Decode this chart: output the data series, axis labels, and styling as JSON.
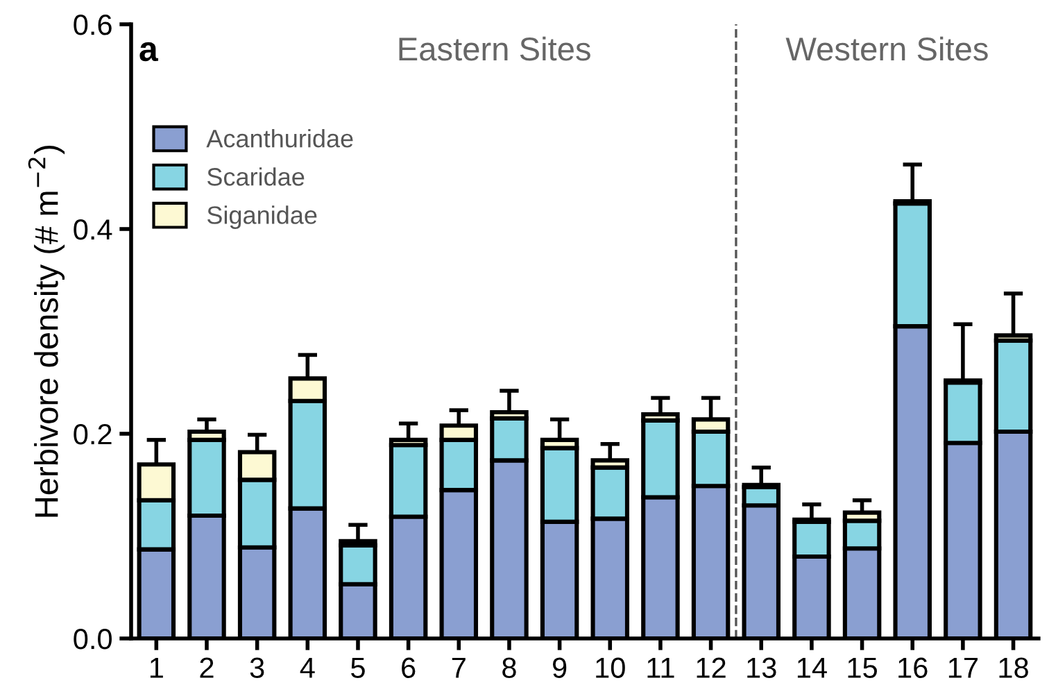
{
  "chart_data": {
    "type": "bar",
    "stacked": true,
    "ylabel": "Herbivore density (# m$^{−2}$)",
    "x": [
      1,
      2,
      3,
      4,
      5,
      6,
      7,
      8,
      9,
      10,
      11,
      12,
      13,
      14,
      15,
      16,
      17,
      18
    ],
    "xlim": [
      0.5,
      18.5
    ],
    "xticks": [
      1,
      2,
      3,
      4,
      5,
      6,
      7,
      8,
      9,
      10,
      11,
      12,
      13,
      14,
      15,
      16,
      17,
      18
    ],
    "ylim": [
      0,
      0.6
    ],
    "yticks": [
      {
        "value": 0,
        "label": "0.0"
      },
      {
        "value": 0.2,
        "label": "0.2"
      },
      {
        "value": 0.4,
        "label": "0.4"
      },
      {
        "value": 0.6,
        "label": "0.6"
      }
    ],
    "series": [
      {
        "name": "Acanthuridae",
        "color": "#8a9fd1",
        "values": [
          0.087,
          0.12,
          0.089,
          0.127,
          0.053,
          0.119,
          0.145,
          0.174,
          0.114,
          0.117,
          0.138,
          0.149,
          0.13,
          0.08,
          0.088,
          0.305,
          0.191,
          0.202
        ]
      },
      {
        "name": "Scaridae",
        "color": "#87d5e3",
        "values": [
          0.048,
          0.074,
          0.066,
          0.105,
          0.038,
          0.07,
          0.049,
          0.041,
          0.072,
          0.05,
          0.075,
          0.053,
          0.018,
          0.034,
          0.027,
          0.12,
          0.059,
          0.089
        ]
      },
      {
        "name": "Siganidae",
        "color": "#fdf9d3",
        "values": [
          0.035,
          0.008,
          0.027,
          0.022,
          0.004,
          0.005,
          0.014,
          0.006,
          0.008,
          0.007,
          0.006,
          0.012,
          0.002,
          0.002,
          0.008,
          0.002,
          0.002,
          0.005
        ],
        "errors": [
          [
            0.17,
            0.194
          ],
          [
            0.202,
            0.214
          ],
          [
            0.182,
            0.199
          ],
          [
            0.254,
            0.277
          ],
          [
            0.095,
            0.111
          ],
          [
            0.194,
            0.21
          ],
          [
            0.208,
            0.223
          ],
          [
            0.221,
            0.242
          ],
          [
            0.194,
            0.214
          ],
          [
            0.174,
            0.19
          ],
          [
            0.219,
            0.235
          ],
          [
            0.214,
            0.235
          ],
          [
            0.15,
            0.167
          ],
          [
            0.116,
            0.131
          ],
          [
            0.123,
            0.135
          ],
          [
            0.427,
            0.463
          ],
          [
            0.252,
            0.307
          ],
          [
            0.296,
            0.337
          ]
        ]
      }
    ],
    "ref_lines": [
      {
        "axis": "x",
        "value": 12.5,
        "color": "#555555",
        "line_style": "dashed"
      }
    ],
    "annotations": [
      "a",
      "Eastern Sites",
      "Western Sites"
    ],
    "legend": "top left",
    "grid": false
  }
}
